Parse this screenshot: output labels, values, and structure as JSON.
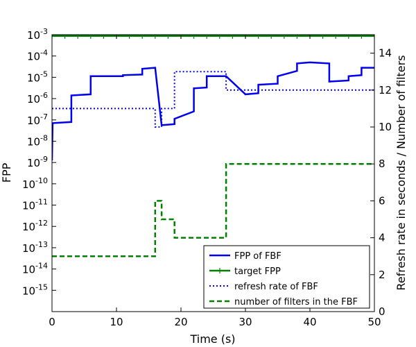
{
  "chart_data": {
    "type": "line",
    "title": "",
    "xlabel": "Time (s)",
    "ylabel_left": "FPP",
    "ylabel_right": "Refresh rate in seconds / Number of filters",
    "xlim": [
      0,
      50
    ],
    "ylim_left_log10": [
      -16,
      -3
    ],
    "ylim_right": [
      0,
      15
    ],
    "x_ticks": [
      0,
      10,
      20,
      30,
      40,
      50
    ],
    "y_left_ticks": [
      {
        "base": "10",
        "exp": "-3"
      },
      {
        "base": "10",
        "exp": "-4"
      },
      {
        "base": "10",
        "exp": "-5"
      },
      {
        "base": "10",
        "exp": "-6"
      },
      {
        "base": "10",
        "exp": "-7"
      },
      {
        "base": "10",
        "exp": "-8"
      },
      {
        "base": "10",
        "exp": "-9"
      },
      {
        "base": "10",
        "exp": "-10"
      },
      {
        "base": "10",
        "exp": "-11"
      },
      {
        "base": "10",
        "exp": "-12"
      },
      {
        "base": "10",
        "exp": "-13"
      },
      {
        "base": "10",
        "exp": "-14"
      },
      {
        "base": "10",
        "exp": "-15"
      }
    ],
    "y_right_ticks": [
      0,
      2,
      4,
      6,
      8,
      10,
      12,
      14
    ],
    "grid": false,
    "legend_position": "lower-right",
    "series": [
      {
        "name": "FPP of FBF",
        "axis": "left",
        "style": "solid",
        "color": "#0000ee",
        "x": [
          0,
          0.1,
          3,
          3,
          6,
          6,
          11,
          11,
          14,
          14,
          16,
          17,
          17,
          19,
          19,
          22,
          22,
          24,
          24,
          27,
          30,
          32,
          32,
          35,
          35,
          38,
          38,
          40,
          43,
          43,
          46,
          46,
          48,
          48,
          50
        ],
        "y_log10": [
          -8.9,
          -7.15,
          -7.1,
          -5.85,
          -5.8,
          -4.95,
          -4.95,
          -4.9,
          -4.87,
          -4.6,
          -4.55,
          -7.25,
          -7.25,
          -7.2,
          -6.95,
          -6.6,
          -5.52,
          -5.48,
          -4.95,
          -4.95,
          -5.8,
          -5.75,
          -5.35,
          -5.3,
          -4.95,
          -4.7,
          -4.35,
          -4.3,
          -4.35,
          -5.2,
          -5.15,
          -4.95,
          -4.9,
          -4.55,
          -4.55
        ]
      },
      {
        "name": "target FPP",
        "axis": "left",
        "style": "solid-plus-markers",
        "color": "#008000",
        "x": [
          0,
          2,
          4,
          6,
          8,
          10,
          12,
          14,
          16,
          18,
          20,
          22,
          24,
          26,
          28,
          30,
          32,
          34,
          36,
          38,
          40,
          42,
          44,
          46,
          48,
          50
        ],
        "y_log10": [
          -3.06,
          -3.06,
          -3.06,
          -3.06,
          -3.06,
          -3.06,
          -3.06,
          -3.06,
          -3.06,
          -3.06,
          -3.06,
          -3.06,
          -3.06,
          -3.06,
          -3.06,
          -3.06,
          -3.06,
          -3.06,
          -3.06,
          -3.06,
          -3.06,
          -3.06,
          -3.06,
          -3.06,
          -3.06,
          -3.06
        ]
      },
      {
        "name": "refresh rate of FBF",
        "axis": "right",
        "style": "dotted",
        "color": "#0000ee",
        "x": [
          0,
          16,
          16,
          17,
          17,
          19,
          19,
          27,
          27,
          50
        ],
        "y": [
          11,
          11,
          10,
          10,
          11,
          11,
          13,
          13,
          12,
          12
        ]
      },
      {
        "name": "number of filters in the FBF",
        "axis": "right",
        "style": "dashed",
        "color": "#008000",
        "x": [
          0,
          16,
          16,
          17,
          17,
          18,
          18,
          19,
          19,
          20,
          20,
          27,
          27,
          50
        ],
        "y": [
          3,
          3,
          6,
          6,
          5,
          5,
          5,
          5,
          4,
          4,
          4,
          4,
          8,
          8
        ]
      }
    ]
  }
}
